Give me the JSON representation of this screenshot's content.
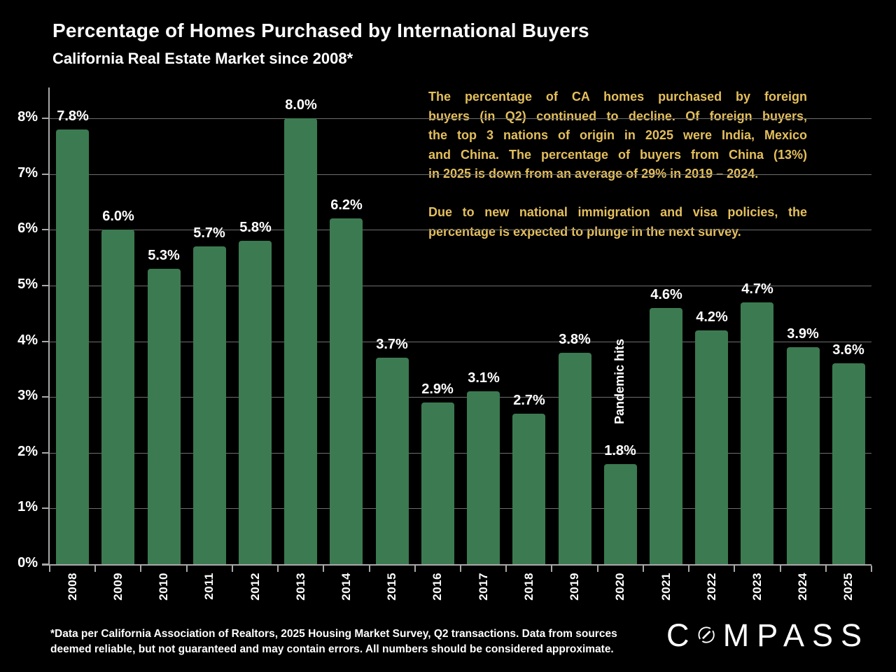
{
  "title": "Percentage of Homes Purchased by International Buyers",
  "subtitle": "California Real Estate Market since 2008*",
  "annotation": {
    "color": "#E4BF5D",
    "para1_lines": [
      "The percentage of CA homes purchased by foreign",
      "buyers (in Q2) continued to decline. Of foreign buyers,",
      "the top 3 nations of origin in 2025 were India, Mexico",
      "and China. The percentage of buyers from China (13%)",
      "in 2025 is down from an average of 29% in 2019 – 2024."
    ],
    "para2_lines": [
      "Due to new national immigration and visa policies, the",
      "percentage is expected to plunge in the next survey."
    ]
  },
  "chart_data": {
    "type": "bar",
    "title": "Percentage of Homes Purchased by International Buyers",
    "subtitle": "California Real Estate Market since 2008*",
    "categories": [
      "2008",
      "2009",
      "2010",
      "2011",
      "2012",
      "2013",
      "2014",
      "2015",
      "2016",
      "2017",
      "2018",
      "2019",
      "2020",
      "2021",
      "2022",
      "2023",
      "2024",
      "2025"
    ],
    "values": [
      7.8,
      6.0,
      5.3,
      5.7,
      5.8,
      8.0,
      6.2,
      3.7,
      2.9,
      3.1,
      2.7,
      3.8,
      1.8,
      4.6,
      4.2,
      4.7,
      3.9,
      3.6
    ],
    "value_labels": [
      "7.8%",
      "6.0%",
      "5.3%",
      "5.7%",
      "5.8%",
      "8.0%",
      "6.2%",
      "3.7%",
      "2.9%",
      "3.1%",
      "2.7%",
      "3.8%",
      "1.8%",
      "4.6%",
      "4.2%",
      "4.7%",
      "3.9%",
      "3.6%"
    ],
    "ytick_labels": [
      "0%",
      "1%",
      "2%",
      "3%",
      "4%",
      "5%",
      "6%",
      "7%",
      "8%"
    ],
    "ylim": [
      0,
      8
    ],
    "grid": true,
    "legend": "none",
    "bar_color": "#3C7A51",
    "gridline_color": "#6E6E6E",
    "axis_color": "#A8A8A8",
    "label_color": "#FFFFFF",
    "annotation_2020": "Pandemic hits",
    "annotation_2020_category": "2020"
  },
  "footnote_lines": [
    "*Data per California Association of Realtors, 2025 Housing Market Survey, Q2 transactions. Data from sources",
    "deemed reliable, but not guaranteed and may contain errors. All numbers should be considered approximate."
  ],
  "logo": {
    "full": "COMPASS",
    "first_letter": "C",
    "rest": "MPASS"
  }
}
